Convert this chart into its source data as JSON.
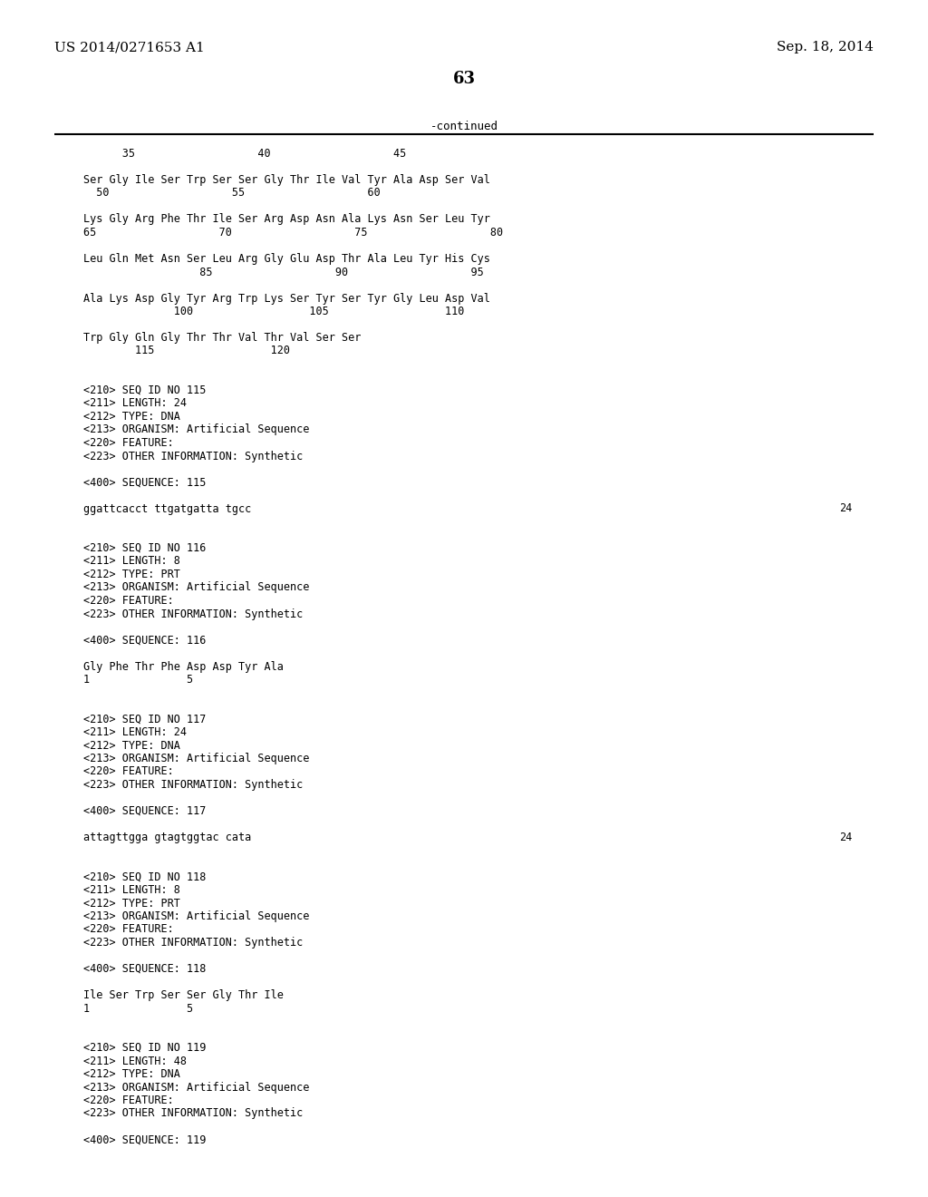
{
  "patent_number": "US 2014/0271653 A1",
  "date": "Sep. 18, 2014",
  "page_number": "63",
  "continued_label": "-continued",
  "background_color": "#ffffff",
  "text_color": "#000000",
  "font_size": 8.5,
  "header_font_size": 11.0,
  "page_num_font_size": 13.0,
  "content_lines": [
    {
      "text": "      35                   40                   45",
      "indent": 0.09,
      "mono": true
    },
    {
      "text": "",
      "indent": 0.09,
      "mono": true
    },
    {
      "text": "Ser Gly Ile Ser Trp Ser Ser Gly Thr Ile Val Tyr Ala Asp Ser Val",
      "indent": 0.09,
      "mono": true
    },
    {
      "text": "  50                   55                   60",
      "indent": 0.09,
      "mono": true
    },
    {
      "text": "",
      "indent": 0.09,
      "mono": true
    },
    {
      "text": "Lys Gly Arg Phe Thr Ile Ser Arg Asp Asn Ala Lys Asn Ser Leu Tyr",
      "indent": 0.09,
      "mono": true
    },
    {
      "text": "65                   70                   75                   80",
      "indent": 0.09,
      "mono": true
    },
    {
      "text": "",
      "indent": 0.09,
      "mono": true
    },
    {
      "text": "Leu Gln Met Asn Ser Leu Arg Gly Glu Asp Thr Ala Leu Tyr His Cys",
      "indent": 0.09,
      "mono": true
    },
    {
      "text": "                  85                   90                   95",
      "indent": 0.09,
      "mono": true
    },
    {
      "text": "",
      "indent": 0.09,
      "mono": true
    },
    {
      "text": "Ala Lys Asp Gly Tyr Arg Trp Lys Ser Tyr Ser Tyr Gly Leu Asp Val",
      "indent": 0.09,
      "mono": true
    },
    {
      "text": "              100                  105                  110",
      "indent": 0.09,
      "mono": true
    },
    {
      "text": "",
      "indent": 0.09,
      "mono": true
    },
    {
      "text": "Trp Gly Gln Gly Thr Thr Val Thr Val Ser Ser",
      "indent": 0.09,
      "mono": true
    },
    {
      "text": "        115                  120",
      "indent": 0.09,
      "mono": true
    },
    {
      "text": "",
      "indent": 0.09,
      "mono": true
    },
    {
      "text": "",
      "indent": 0.09,
      "mono": true
    },
    {
      "text": "<210> SEQ ID NO 115",
      "indent": 0.09,
      "mono": true
    },
    {
      "text": "<211> LENGTH: 24",
      "indent": 0.09,
      "mono": true
    },
    {
      "text": "<212> TYPE: DNA",
      "indent": 0.09,
      "mono": true
    },
    {
      "text": "<213> ORGANISM: Artificial Sequence",
      "indent": 0.09,
      "mono": true
    },
    {
      "text": "<220> FEATURE:",
      "indent": 0.09,
      "mono": true
    },
    {
      "text": "<223> OTHER INFORMATION: Synthetic",
      "indent": 0.09,
      "mono": true
    },
    {
      "text": "",
      "indent": 0.09,
      "mono": true
    },
    {
      "text": "<400> SEQUENCE: 115",
      "indent": 0.09,
      "mono": true
    },
    {
      "text": "",
      "indent": 0.09,
      "mono": true
    },
    {
      "text": "ggattcacct ttgatgatta tgcc",
      "indent": 0.09,
      "mono": true,
      "right_num": "24"
    },
    {
      "text": "",
      "indent": 0.09,
      "mono": true
    },
    {
      "text": "",
      "indent": 0.09,
      "mono": true
    },
    {
      "text": "<210> SEQ ID NO 116",
      "indent": 0.09,
      "mono": true
    },
    {
      "text": "<211> LENGTH: 8",
      "indent": 0.09,
      "mono": true
    },
    {
      "text": "<212> TYPE: PRT",
      "indent": 0.09,
      "mono": true
    },
    {
      "text": "<213> ORGANISM: Artificial Sequence",
      "indent": 0.09,
      "mono": true
    },
    {
      "text": "<220> FEATURE:",
      "indent": 0.09,
      "mono": true
    },
    {
      "text": "<223> OTHER INFORMATION: Synthetic",
      "indent": 0.09,
      "mono": true
    },
    {
      "text": "",
      "indent": 0.09,
      "mono": true
    },
    {
      "text": "<400> SEQUENCE: 116",
      "indent": 0.09,
      "mono": true
    },
    {
      "text": "",
      "indent": 0.09,
      "mono": true
    },
    {
      "text": "Gly Phe Thr Phe Asp Asp Tyr Ala",
      "indent": 0.09,
      "mono": true
    },
    {
      "text": "1               5",
      "indent": 0.09,
      "mono": true
    },
    {
      "text": "",
      "indent": 0.09,
      "mono": true
    },
    {
      "text": "",
      "indent": 0.09,
      "mono": true
    },
    {
      "text": "<210> SEQ ID NO 117",
      "indent": 0.09,
      "mono": true
    },
    {
      "text": "<211> LENGTH: 24",
      "indent": 0.09,
      "mono": true
    },
    {
      "text": "<212> TYPE: DNA",
      "indent": 0.09,
      "mono": true
    },
    {
      "text": "<213> ORGANISM: Artificial Sequence",
      "indent": 0.09,
      "mono": true
    },
    {
      "text": "<220> FEATURE:",
      "indent": 0.09,
      "mono": true
    },
    {
      "text": "<223> OTHER INFORMATION: Synthetic",
      "indent": 0.09,
      "mono": true
    },
    {
      "text": "",
      "indent": 0.09,
      "mono": true
    },
    {
      "text": "<400> SEQUENCE: 117",
      "indent": 0.09,
      "mono": true
    },
    {
      "text": "",
      "indent": 0.09,
      "mono": true
    },
    {
      "text": "attagttgga gtagtggtac cata",
      "indent": 0.09,
      "mono": true,
      "right_num": "24"
    },
    {
      "text": "",
      "indent": 0.09,
      "mono": true
    },
    {
      "text": "",
      "indent": 0.09,
      "mono": true
    },
    {
      "text": "<210> SEQ ID NO 118",
      "indent": 0.09,
      "mono": true
    },
    {
      "text": "<211> LENGTH: 8",
      "indent": 0.09,
      "mono": true
    },
    {
      "text": "<212> TYPE: PRT",
      "indent": 0.09,
      "mono": true
    },
    {
      "text": "<213> ORGANISM: Artificial Sequence",
      "indent": 0.09,
      "mono": true
    },
    {
      "text": "<220> FEATURE:",
      "indent": 0.09,
      "mono": true
    },
    {
      "text": "<223> OTHER INFORMATION: Synthetic",
      "indent": 0.09,
      "mono": true
    },
    {
      "text": "",
      "indent": 0.09,
      "mono": true
    },
    {
      "text": "<400> SEQUENCE: 118",
      "indent": 0.09,
      "mono": true
    },
    {
      "text": "",
      "indent": 0.09,
      "mono": true
    },
    {
      "text": "Ile Ser Trp Ser Ser Gly Thr Ile",
      "indent": 0.09,
      "mono": true
    },
    {
      "text": "1               5",
      "indent": 0.09,
      "mono": true
    },
    {
      "text": "",
      "indent": 0.09,
      "mono": true
    },
    {
      "text": "",
      "indent": 0.09,
      "mono": true
    },
    {
      "text": "<210> SEQ ID NO 119",
      "indent": 0.09,
      "mono": true
    },
    {
      "text": "<211> LENGTH: 48",
      "indent": 0.09,
      "mono": true
    },
    {
      "text": "<212> TYPE: DNA",
      "indent": 0.09,
      "mono": true
    },
    {
      "text": "<213> ORGANISM: Artificial Sequence",
      "indent": 0.09,
      "mono": true
    },
    {
      "text": "<220> FEATURE:",
      "indent": 0.09,
      "mono": true
    },
    {
      "text": "<223> OTHER INFORMATION: Synthetic",
      "indent": 0.09,
      "mono": true
    },
    {
      "text": "",
      "indent": 0.09,
      "mono": true
    },
    {
      "text": "<400> SEQUENCE: 119",
      "indent": 0.09,
      "mono": true
    }
  ]
}
